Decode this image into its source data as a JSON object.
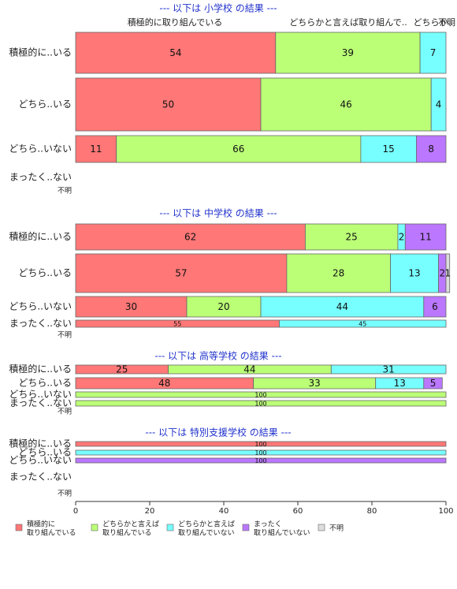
{
  "colors": {
    "積極的に取り組んでいる": "#ff7777",
    "どちらかと言えば取り組んでいる": "#bbff77",
    "どちらかと言えば取り組んでいない": "#77ffff",
    "まったく取り組んでいない": "#bb77ff",
    "不明": "#dddddd"
  },
  "legend": [
    {
      "key": "積極的に取り組んでいる",
      "lines": [
        "積極的に",
        "取り組んでいる"
      ]
    },
    {
      "key": "どちらかと言えば取り組んでいる",
      "lines": [
        "どちらかと言えば",
        "取り組んでいる"
      ]
    },
    {
      "key": "どちらかと言えば取り組んでいない",
      "lines": [
        "どちらかと言えば",
        "取り組んでいない"
      ]
    },
    {
      "key": "まったく取り組んでいない",
      "lines": [
        "まったく",
        "取り組んでいない"
      ]
    },
    {
      "key": "不明",
      "lines": [
        "不明"
      ]
    }
  ],
  "top_labels": [
    "積極的に取り組んでいる",
    "どちらかと言えば取り組んで..",
    "どちらか..",
    "不明"
  ],
  "chart_data": {
    "type": "bar",
    "orientation": "horizontal",
    "stacked": true,
    "xlim": [
      0,
      100
    ],
    "xticks": [
      0,
      20,
      40,
      60,
      80,
      100
    ],
    "series_order": [
      "積極的に取り組んでいる",
      "どちらかと言えば取り組んでいる",
      "どちらかと言えば取り組んでいない",
      "まったく取り組んでいない",
      "不明"
    ],
    "panels": [
      {
        "title": "--- 以下は 小学校 の結果 ---",
        "rows": [
          {
            "label": "積極的に..いる",
            "values": [
              54,
              39,
              7,
              0,
              0
            ]
          },
          {
            "label": "どちら..いる",
            "values": [
              50,
              46,
              4,
              0,
              0
            ]
          },
          {
            "label": "どちら..いない",
            "values": [
              11,
              66,
              15,
              8,
              0
            ]
          },
          {
            "label": "まったく..ない",
            "values": [
              0,
              0,
              0,
              0,
              0
            ]
          },
          {
            "label": "不明",
            "values": [
              0,
              0,
              0,
              0,
              0
            ]
          }
        ]
      },
      {
        "title": "--- 以下は 中学校 の結果 ---",
        "rows": [
          {
            "label": "積極的に..いる",
            "values": [
              62,
              25,
              2,
              11,
              0
            ]
          },
          {
            "label": "どちら..いる",
            "values": [
              57,
              28,
              13,
              2,
              1
            ]
          },
          {
            "label": "どちら..いない",
            "values": [
              30,
              20,
              44,
              6,
              0
            ]
          },
          {
            "label": "まったく..ない",
            "values": [
              55,
              0,
              45,
              0,
              0
            ]
          },
          {
            "label": "不明",
            "values": [
              0,
              0,
              0,
              0,
              0
            ]
          }
        ]
      },
      {
        "title": "--- 以下は 高等学校 の結果 ---",
        "rows": [
          {
            "label": "積極的に..いる",
            "values": [
              25,
              44,
              31,
              0,
              0
            ]
          },
          {
            "label": "どちら..いる",
            "values": [
              48,
              33,
              13,
              5,
              0
            ]
          },
          {
            "label": "どちら..いない",
            "values": [
              0,
              100,
              0,
              0,
              0
            ]
          },
          {
            "label": "まったく..ない",
            "values": [
              0,
              100,
              0,
              0,
              0
            ]
          },
          {
            "label": "不明",
            "values": [
              0,
              0,
              0,
              0,
              0
            ]
          }
        ]
      },
      {
        "title": "--- 以下は 特別支援学校 の結果 ---",
        "rows": [
          {
            "label": "積極的に..いる",
            "values": [
              100,
              0,
              0,
              0,
              0
            ]
          },
          {
            "label": "どちら..いる",
            "values": [
              0,
              0,
              100,
              0,
              0
            ]
          },
          {
            "label": "どちら..いない",
            "values": [
              0,
              0,
              0,
              100,
              0
            ]
          },
          {
            "label": "まったく..ない",
            "values": [
              0,
              0,
              0,
              0,
              0
            ]
          },
          {
            "label": "不明",
            "values": [
              0,
              0,
              0,
              0,
              0
            ]
          }
        ]
      }
    ]
  }
}
